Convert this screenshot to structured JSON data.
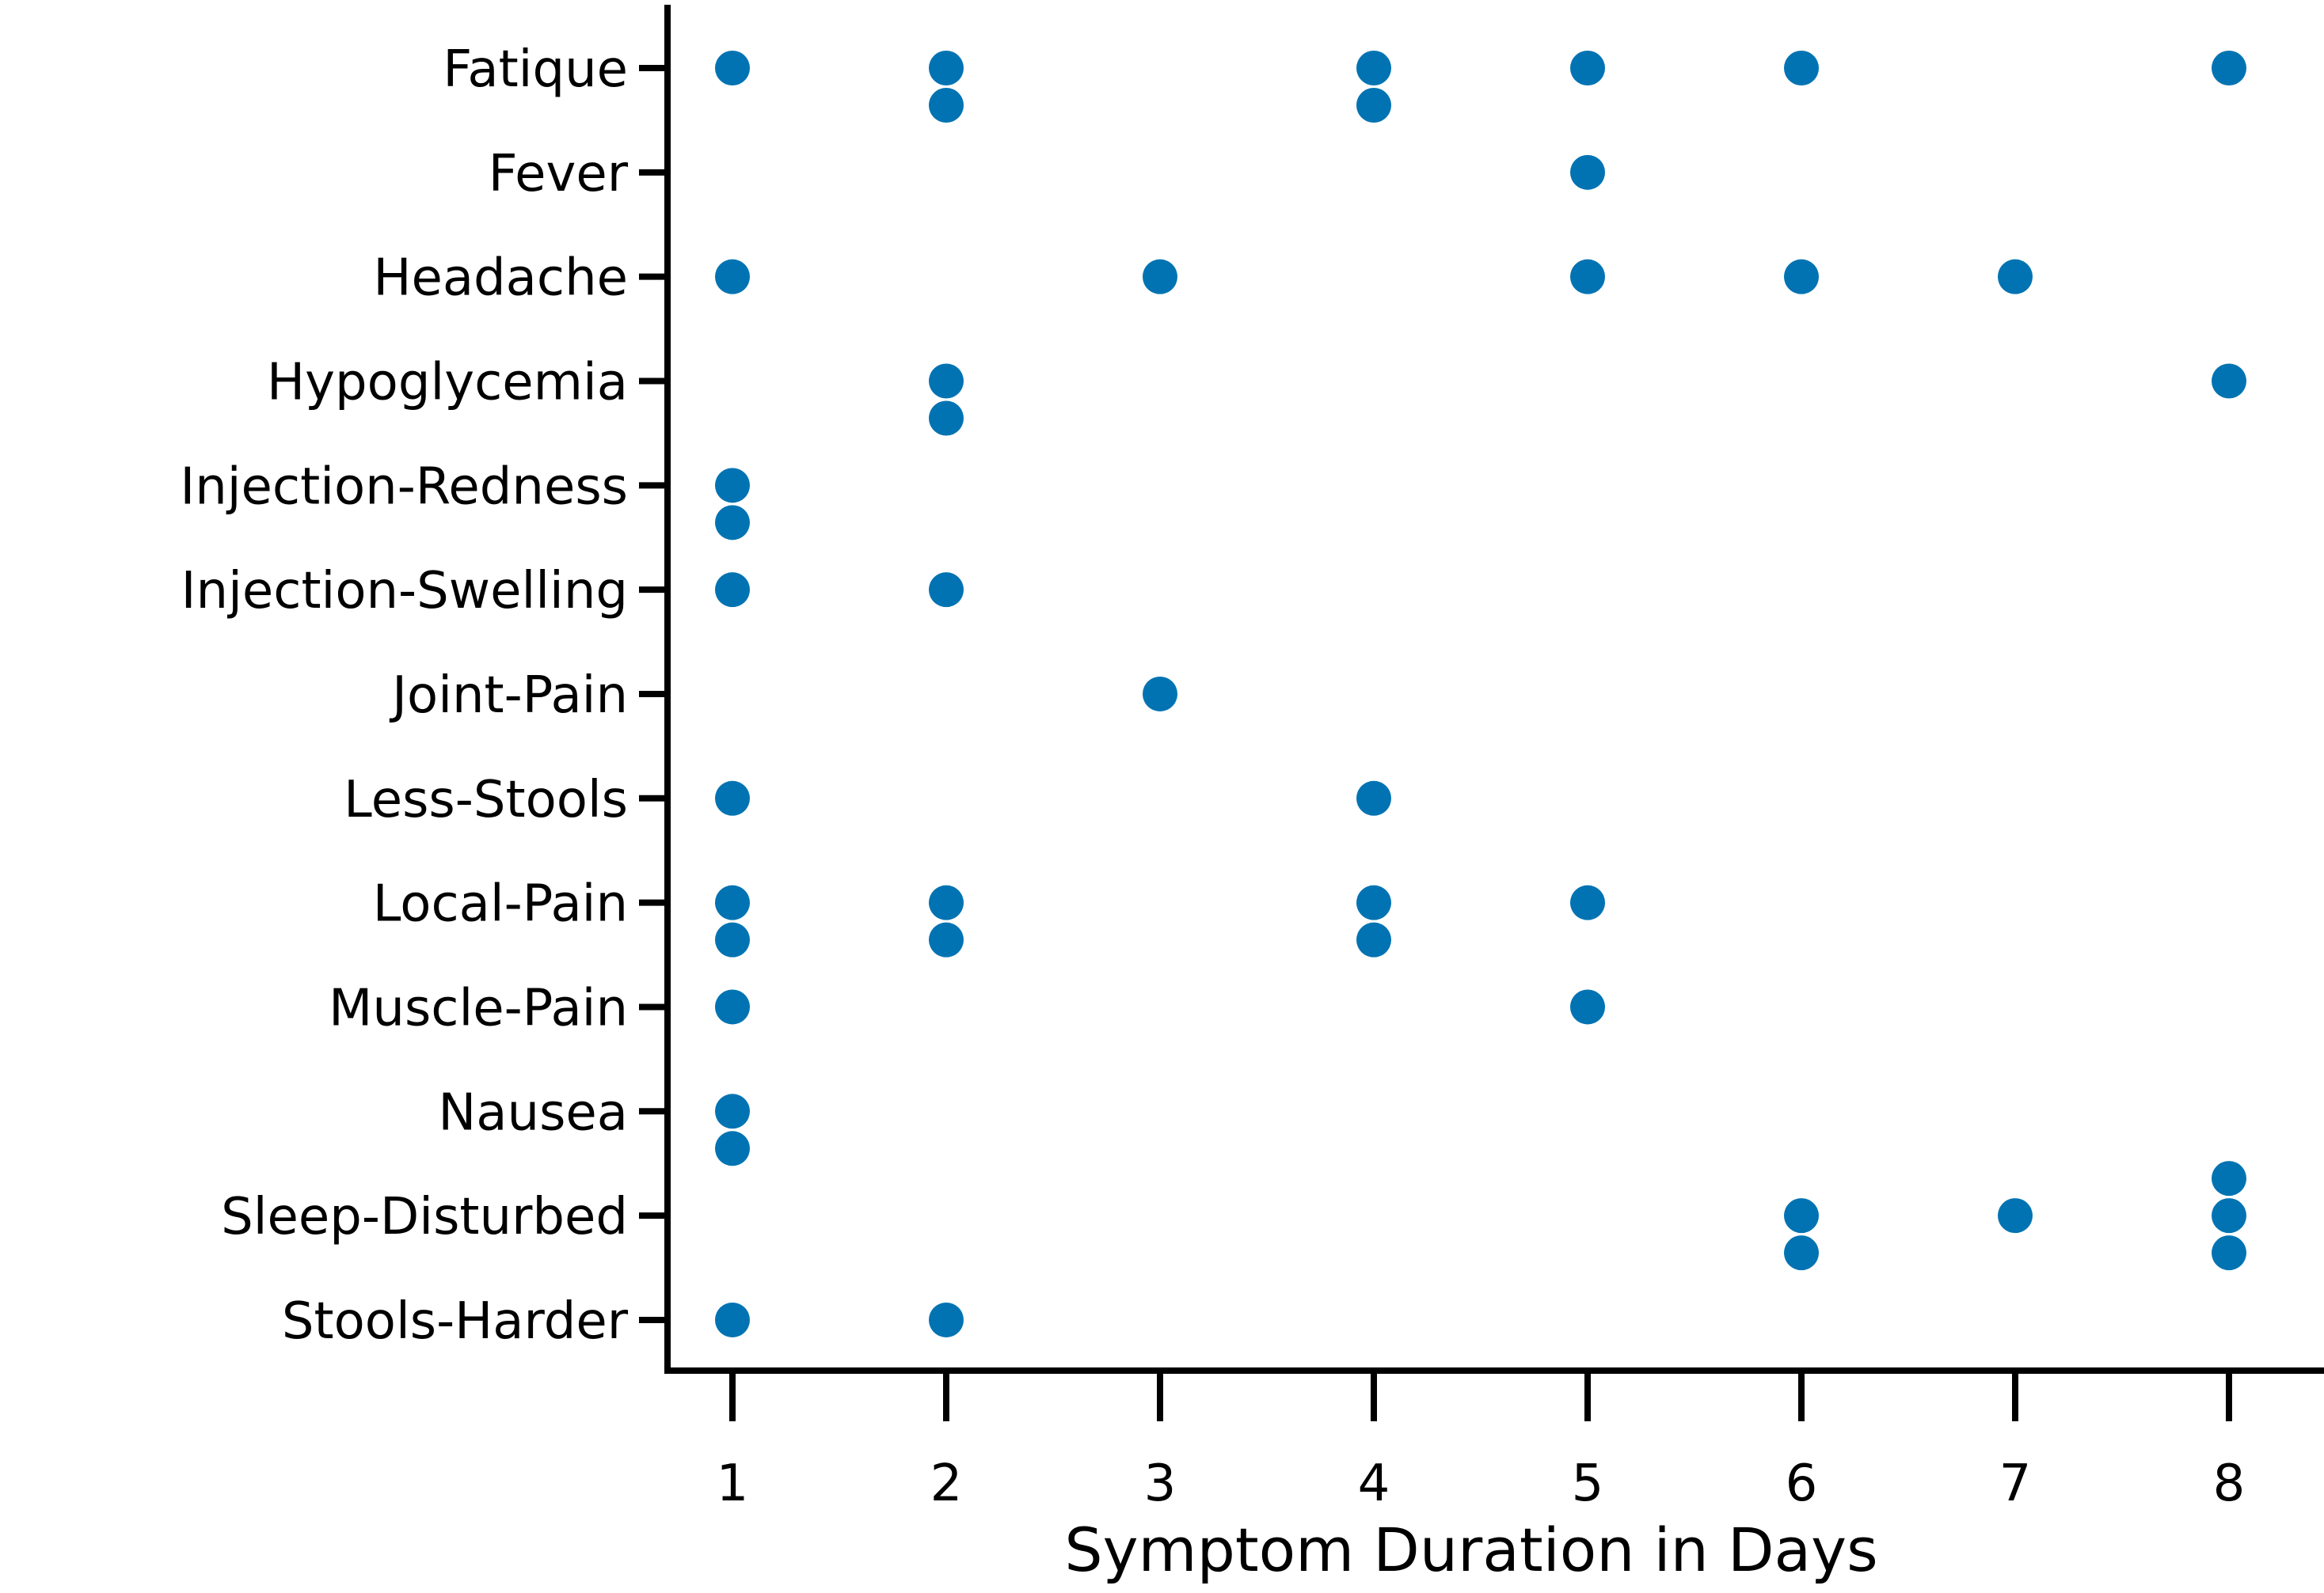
{
  "chart_data": {
    "type": "scatter",
    "variant": "swarm-strip-plot",
    "title": "",
    "xlabel": "Symptom Duration in Days",
    "ylabel": "",
    "x_ticks": [
      "1",
      "2",
      "3",
      "4",
      "5",
      "6",
      "7",
      "8"
    ],
    "xlim": [
      0.7,
      8.45
    ],
    "grid": false,
    "legend_position": "none",
    "point_color": "#0173b2",
    "axis_color": "#000000",
    "categories": [
      "Fatique",
      "Fever",
      "Headache",
      "Hypoglycemia",
      "Injection-Redness",
      "Injection-Swelling",
      "Joint-Pain",
      "Less-Stools",
      "Local-Pain",
      "Muscle-Pain",
      "Nausea",
      "Sleep-Disturbed",
      "Stools-Harder"
    ],
    "observations": {
      "Fatique": [
        1,
        2,
        2,
        4,
        4,
        5,
        6,
        8
      ],
      "Fever": [
        5
      ],
      "Headache": [
        1,
        3,
        5,
        6,
        7
      ],
      "Hypoglycemia": [
        2,
        2,
        8
      ],
      "Injection-Redness": [
        1,
        1
      ],
      "Injection-Swelling": [
        1,
        2
      ],
      "Joint-Pain": [
        3
      ],
      "Less-Stools": [
        1,
        4
      ],
      "Local-Pain": [
        1,
        1,
        2,
        2,
        4,
        4,
        5
      ],
      "Muscle-Pain": [
        1,
        5
      ],
      "Nausea": [
        1,
        1
      ],
      "Sleep-Disturbed": [
        6,
        6,
        7,
        8,
        8,
        8
      ],
      "Stools-Harder": [
        1,
        2
      ]
    },
    "duplicate_stack_layout": {
      "1": [
        0
      ],
      "2": [
        0,
        1
      ],
      "3": [
        -1,
        0,
        1
      ]
    }
  }
}
